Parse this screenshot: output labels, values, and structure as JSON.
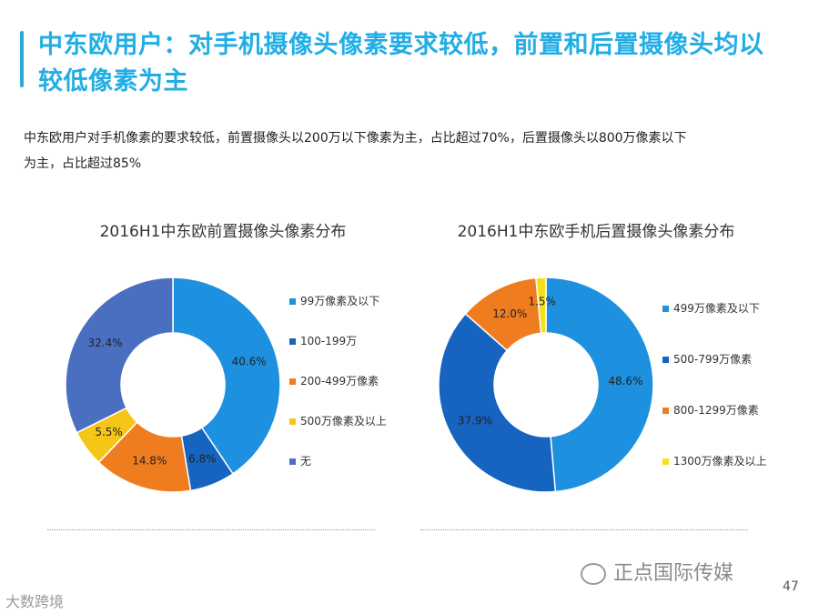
{
  "header": {
    "title": "中东欧用户：对手机摄像头像素要求较低，前置和后置摄像头均以较低像素为主",
    "subtitle": "中东欧用户对手机像素的要求较低，前置摄像头以200万以下像素为主，占比超过70%，后置摄像头以800万像素以下为主，占比超过85%",
    "accent_color": "#22aee4"
  },
  "chart_data": [
    {
      "type": "pie",
      "donut": true,
      "title": "2016H1中东欧前置摄像头像素分布",
      "legend_position": "right",
      "slices": [
        {
          "label": "99万像素及以下",
          "value": 40.6,
          "text": "40.6%",
          "color": "#1e90e0"
        },
        {
          "label": "100-199万",
          "value": 6.8,
          "text": "6.8%",
          "color": "#1664c0"
        },
        {
          "label": "200-499万像素",
          "value": 14.8,
          "text": "14.8%",
          "color": "#f07c20"
        },
        {
          "label": "500万像素及以上",
          "value": 5.5,
          "text": "5.5%",
          "color": "#f5c518"
        },
        {
          "label": "无",
          "value": 32.4,
          "text": "32.4%",
          "color": "#4a6fc0"
        }
      ]
    },
    {
      "type": "pie",
      "donut": true,
      "title": "2016H1中东欧手机后置摄像头像素分布",
      "legend_position": "right",
      "slices": [
        {
          "label": "499万像素及以下",
          "value": 48.6,
          "text": "48.6%",
          "color": "#1e90e0"
        },
        {
          "label": "500-799万像素",
          "value": 37.9,
          "text": "37.9%",
          "color": "#1664c0"
        },
        {
          "label": "800-1299万像素",
          "value": 12.0,
          "text": "12.0%",
          "color": "#f07c20"
        },
        {
          "label": "1300万像素及以上",
          "value": 1.5,
          "text": "1.5%",
          "color": "#f5e11a"
        }
      ]
    }
  ],
  "footer": {
    "watermark": "正点国际传媒",
    "page_number": "47",
    "corner_logo": "大数跨境"
  }
}
